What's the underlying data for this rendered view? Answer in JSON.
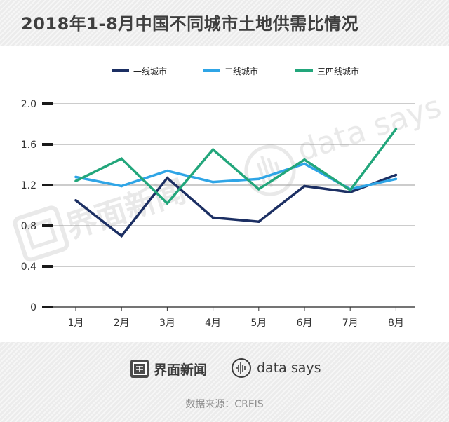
{
  "title": "2018年1-8月中国不同城市土地供需比情况",
  "colors": {
    "header_background": "#ececec",
    "grid": "#9a9a9a",
    "tick_mark": "#1a1a1a"
  },
  "watermark": {
    "brand_cn": "界面新闻",
    "brand_en": "data says"
  },
  "footer": {
    "brand_cn": "界面新闻",
    "brand_en": "data says",
    "source": "数据来源：CREIS"
  },
  "chart_data": {
    "type": "line",
    "categories": [
      "1月",
      "2月",
      "3月",
      "4月",
      "5月",
      "6月",
      "7月",
      "8月"
    ],
    "series": [
      {
        "name": "一线城市",
        "color": "#1c2f63",
        "values": [
          1.05,
          0.7,
          1.27,
          0.88,
          0.84,
          1.19,
          1.13,
          1.3
        ]
      },
      {
        "name": "二线城市",
        "color": "#2fa5e6",
        "values": [
          1.28,
          1.19,
          1.34,
          1.23,
          1.26,
          1.41,
          1.16,
          1.26
        ]
      },
      {
        "name": "三四线城市",
        "color": "#22a67b",
        "values": [
          1.24,
          1.46,
          1.02,
          1.55,
          1.16,
          1.45,
          1.15,
          1.75
        ]
      }
    ],
    "yticks": [
      "0",
      "0.4",
      "0.8",
      "1.2",
      "1.6",
      "2.0"
    ],
    "ylim": [
      0,
      2.0
    ],
    "grid": true,
    "legend_position": "top"
  }
}
